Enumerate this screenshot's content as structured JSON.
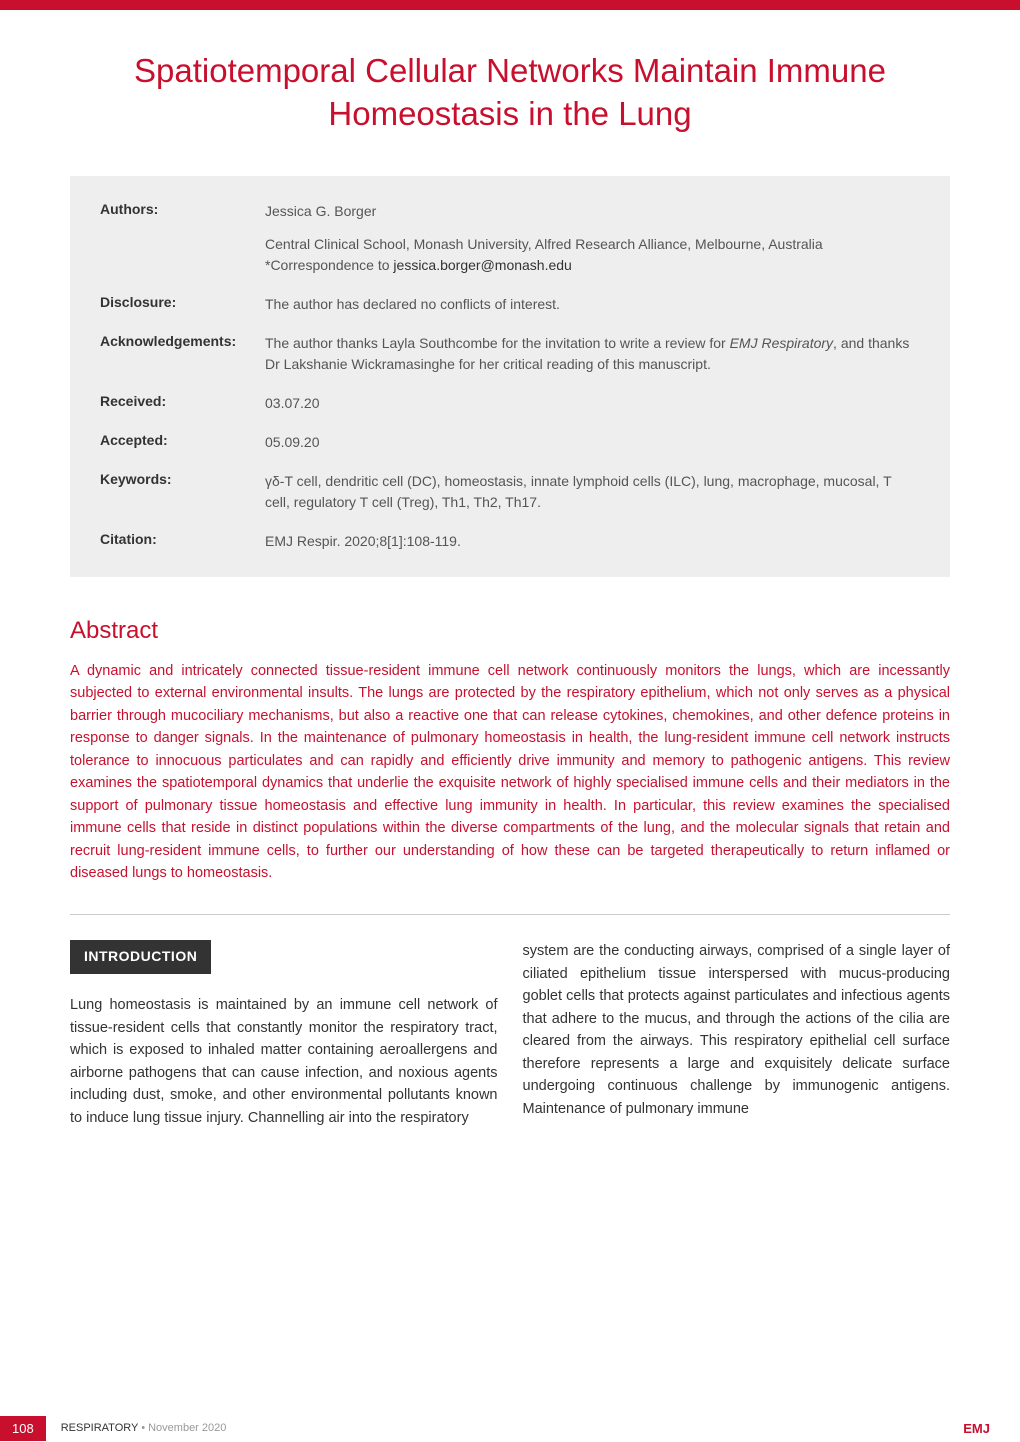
{
  "title": "Spatiotemporal Cellular Networks Maintain Immune Homeostasis in the Lung",
  "info": {
    "authors": {
      "label": "Authors:",
      "name": "Jessica G. Borger",
      "affiliation": "Central Clinical School, Monash University, Alfred Research Alliance, Melbourne, Australia",
      "correspondence_prefix": "*Correspondence to ",
      "correspondence_email": "jessica.borger@monash.edu"
    },
    "disclosure": {
      "label": "Disclosure:",
      "text": "The author has declared no conflicts of interest."
    },
    "acknowledgements": {
      "label": "Acknowledgements:",
      "text_part1": "The author thanks Layla Southcombe for the invitation to write a review for ",
      "text_italic": "EMJ Respiratory",
      "text_part2": ", and thanks Dr Lakshanie Wickramasinghe for her critical reading of this manuscript."
    },
    "received": {
      "label": "Received:",
      "text": "03.07.20"
    },
    "accepted": {
      "label": "Accepted:",
      "text": "05.09.20"
    },
    "keywords": {
      "label": "Keywords:",
      "text": "γδ-T cell, dendritic cell (DC), homeostasis, innate lymphoid cells (ILC), lung, macrophage, mucosal, T cell, regulatory T cell (Treg), Th1, Th2, Th17."
    },
    "citation": {
      "label": "Citation:",
      "text": "EMJ Respir. 2020;8[1]:108-119."
    }
  },
  "abstract": {
    "heading": "Abstract",
    "text": "A dynamic and intricately connected tissue-resident immune cell network continuously monitors the lungs, which are incessantly subjected to external environmental insults. The lungs are protected by the respiratory epithelium, which not only serves as a physical barrier through mucociliary mechanisms, but also a reactive one that can release cytokines, chemokines, and other defence proteins in response to danger signals. In the maintenance of pulmonary homeostasis in health, the lung-resident immune cell network instructs tolerance to innocuous particulates and can rapidly and efficiently drive immunity and memory to pathogenic antigens. This review examines the spatiotemporal dynamics that underlie the exquisite network of highly specialised immune cells and their mediators in the support of pulmonary tissue homeostasis and effective lung immunity in health. In particular, this review examines the specialised immune cells that reside in distinct populations within the diverse compartments of the lung, and the molecular signals that retain and recruit lung-resident immune cells, to further our understanding of how these can be targeted therapeutically to return inflamed or diseased lungs to homeostasis."
  },
  "introduction": {
    "heading": "INTRODUCTION",
    "col1": "Lung homeostasis is maintained by an immune cell network of tissue-resident cells that constantly monitor the respiratory tract, which is exposed to inhaled matter containing aeroallergens and airborne pathogens that can cause infection, and noxious agents including dust, smoke, and other environmental pollutants known to induce lung tissue injury. Channelling air into the respiratory",
    "col2": "system are the conducting airways, comprised of a single layer of ciliated epithelium tissue interspersed with mucus-producing goblet cells that protects against particulates and infectious agents that adhere to the mucus, and through the actions of the cilia are cleared from the airways. This respiratory epithelial cell surface therefore represents a large and exquisitely delicate surface undergoing continuous challenge by immunogenic antigens. Maintenance of pulmonary immune"
  },
  "footer": {
    "page": "108",
    "journal": "RESPIRATORY",
    "separator": " • ",
    "date": "November 2020",
    "right": "EMJ"
  },
  "colors": {
    "accent": "#c8102e",
    "infobox_bg": "#eeeeee",
    "text_dark": "#333333",
    "text_medium": "#555555",
    "text_light": "#999999"
  }
}
